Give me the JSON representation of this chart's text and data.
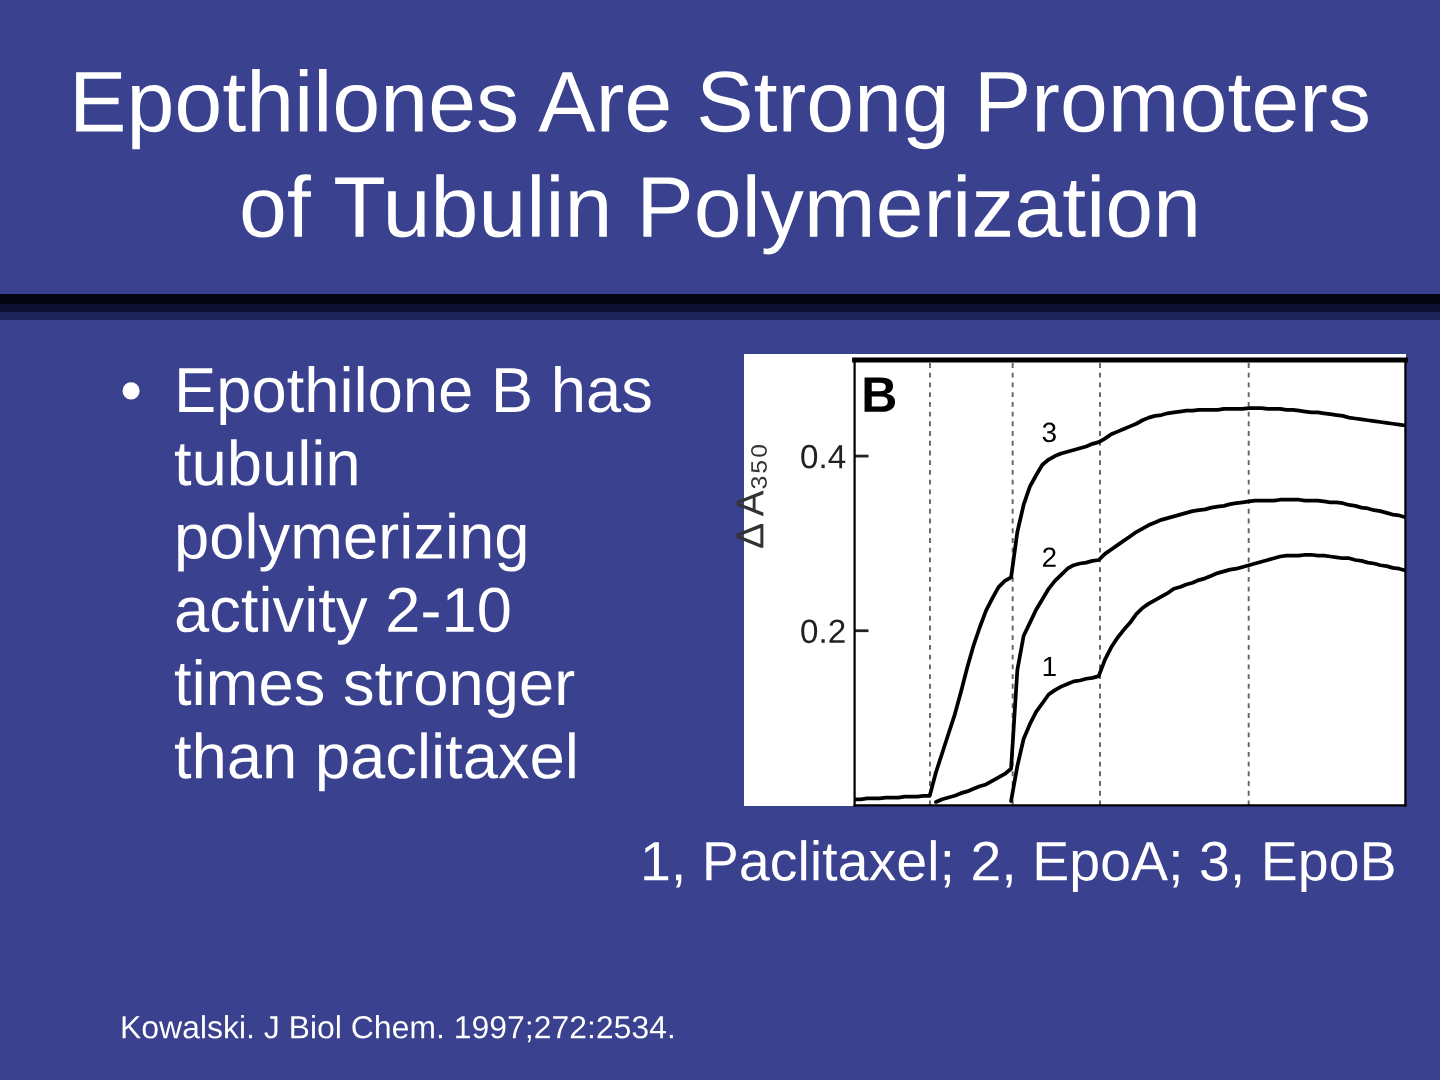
{
  "chart_data": {
    "type": "line",
    "title": "Epothilones Are Strong Promoters of Tubulin Polymerization",
    "ylabel": "Δ A₃₅₀",
    "annotations": [
      "• Epothilone B has tubulin polymerizing activity 2-10 times stronger than paclitaxel",
      "B",
      "1, Paclitaxel; 2, EpoA; 3, EpoB",
      "Kowalski. J Biol Chem. 1997;272:2534."
    ],
    "categories": [
      null,
      null,
      null,
      null,
      null,
      null,
      null,
      null,
      null,
      null,
      null,
      null,
      null,
      null,
      null,
      null,
      null,
      null,
      null,
      null,
      null,
      null,
      null,
      null,
      null,
      null,
      null,
      null,
      null,
      null,
      null,
      null,
      null,
      null,
      null,
      null,
      null,
      null,
      null,
      null,
      null,
      null,
      null,
      null,
      null,
      null,
      null,
      null,
      null,
      null,
      null,
      null,
      null,
      null,
      null,
      null,
      null,
      null,
      null,
      null,
      null,
      null,
      null,
      null,
      null,
      null,
      null,
      null,
      null,
      null,
      null,
      null,
      null,
      null,
      null,
      null,
      null,
      null,
      null,
      null,
      null,
      null,
      null,
      null,
      null,
      null,
      null,
      null,
      null
    ],
    "tick_labels": "y",
    "ylim": [
      0,
      0.51
    ],
    "yticks": [
      0.2,
      0.4
    ],
    "grid": "x",
    "line_style": "solid",
    "series": [
      {
        "name": "1",
        "color": "#000000",
        "values": [
          null,
          null,
          null,
          null,
          null,
          null,
          null,
          null,
          null,
          null,
          null,
          null,
          null,
          null,
          null,
          null,
          null,
          null,
          null,
          null,
          null,
          null,
          null,
          null,
          null,
          0.005,
          0.045,
          0.076,
          0.093,
          0.107,
          0.117,
          0.127,
          0.132,
          0.136,
          0.139,
          0.142,
          0.143,
          0.145,
          0.146,
          0.148,
          0.167,
          0.181,
          0.192,
          0.201,
          0.209,
          0.219,
          0.226,
          0.231,
          0.235,
          0.239,
          0.243,
          0.248,
          0.25,
          0.253,
          0.255,
          0.258,
          0.26,
          0.263,
          0.266,
          0.268,
          0.27,
          0.271,
          0.273,
          0.275,
          0.277,
          0.279,
          0.281,
          0.283,
          0.285,
          0.286,
          0.286,
          0.286,
          0.287,
          0.287,
          0.286,
          0.286,
          0.285,
          0.284,
          0.283,
          0.283,
          0.281,
          0.28,
          0.278,
          0.277,
          0.275,
          0.274,
          0.272,
          0.271,
          0.269
        ]
      },
      {
        "name": "2",
        "color": "#000000",
        "values": [
          null,
          null,
          null,
          null,
          null,
          null,
          null,
          null,
          null,
          null,
          null,
          null,
          null,
          0.004,
          0.007,
          0.009,
          0.011,
          0.014,
          0.016,
          0.019,
          0.022,
          0.024,
          0.028,
          0.032,
          0.036,
          0.042,
          0.155,
          0.194,
          0.209,
          0.224,
          0.236,
          0.248,
          0.257,
          0.264,
          0.271,
          0.275,
          0.277,
          0.278,
          0.28,
          0.281,
          0.288,
          0.293,
          0.298,
          0.303,
          0.308,
          0.313,
          0.317,
          0.321,
          0.324,
          0.327,
          0.329,
          0.331,
          0.333,
          0.335,
          0.337,
          0.338,
          0.339,
          0.341,
          0.342,
          0.343,
          0.345,
          0.346,
          0.347,
          0.348,
          0.349,
          0.349,
          0.349,
          0.349,
          0.35,
          0.35,
          0.35,
          0.35,
          0.349,
          0.349,
          0.349,
          0.348,
          0.347,
          0.347,
          0.346,
          0.344,
          0.343,
          0.341,
          0.34,
          0.338,
          0.337,
          0.335,
          0.333,
          0.332,
          0.33
        ]
      },
      {
        "name": "3",
        "color": "#000000",
        "values": [
          0.007,
          0.007,
          0.008,
          0.008,
          0.008,
          0.009,
          0.009,
          0.009,
          0.01,
          0.01,
          0.01,
          0.011,
          0.011,
          0.038,
          0.06,
          0.082,
          0.104,
          0.13,
          0.158,
          0.183,
          0.204,
          0.223,
          0.237,
          0.25,
          0.257,
          0.261,
          0.313,
          0.344,
          0.365,
          0.378,
          0.39,
          0.396,
          0.4,
          0.403,
          0.405,
          0.407,
          0.409,
          0.411,
          0.414,
          0.416,
          0.42,
          0.425,
          0.428,
          0.431,
          0.434,
          0.437,
          0.441,
          0.444,
          0.446,
          0.447,
          0.449,
          0.45,
          0.451,
          0.452,
          0.452,
          0.453,
          0.453,
          0.453,
          0.453,
          0.454,
          0.454,
          0.454,
          0.454,
          0.455,
          0.455,
          0.455,
          0.454,
          0.454,
          0.454,
          0.453,
          0.453,
          0.452,
          0.451,
          0.45,
          0.45,
          0.449,
          0.448,
          0.447,
          0.446,
          0.444,
          0.443,
          0.442,
          0.441,
          0.44,
          0.439,
          0.438,
          0.437,
          0.436,
          0.435
        ]
      }
    ]
  }
}
